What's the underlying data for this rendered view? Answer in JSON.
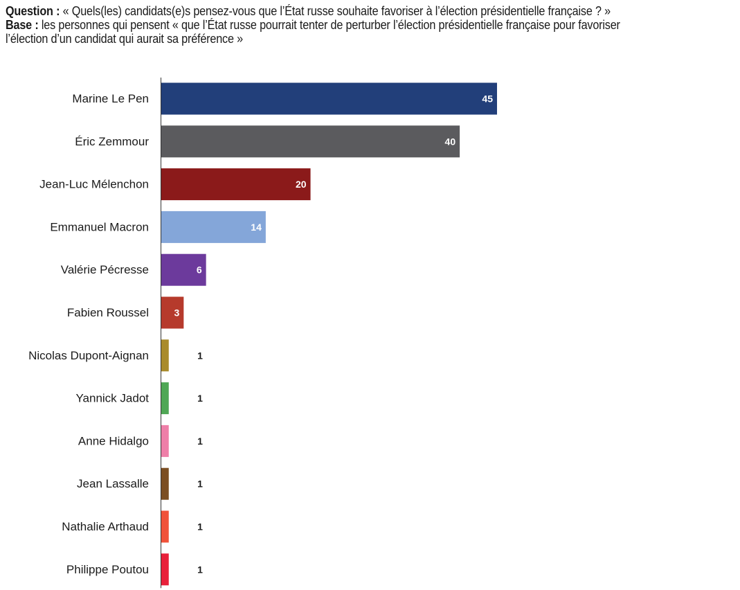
{
  "question": {
    "label": "Question :",
    "text": "« Quels(les) candidats(e)s pensez-vous que l’État russe souhaite favoriser à l’élection présidentielle française ? »"
  },
  "base": {
    "label": "Base :",
    "text_line1": "les personnes qui pensent « que l’État russe pourrait tenter de perturber l’élection présidentielle française pour favoriser",
    "text_line2": "l’élection d’un candidat qui aurait sa préférence »"
  },
  "chart_data": {
    "type": "bar",
    "orientation": "horizontal",
    "categories": [
      "Marine Le Pen",
      "Éric Zemmour",
      "Jean-Luc Mélenchon",
      "Emmanuel Macron",
      "Valérie Pécresse",
      "Fabien Roussel",
      "Nicolas Dupont-Aignan",
      "Yannick Jadot",
      "Anne Hidalgo",
      "Jean Lassalle",
      "Nathalie Arthaud",
      "Philippe Poutou"
    ],
    "values": [
      45,
      40,
      20,
      14,
      6,
      3,
      1,
      1,
      1,
      1,
      1,
      1
    ],
    "colors": [
      "#223F7A",
      "#5B5B5E",
      "#8B1A1A",
      "#84A6D9",
      "#6C3A9C",
      "#B63A2C",
      "#A98B2C",
      "#4FA755",
      "#EE7FA8",
      "#7B4E22",
      "#F0523A",
      "#E8203A"
    ],
    "label_colors": [
      "#ffffff",
      "#ffffff",
      "#ffffff",
      "#ffffff",
      "#ffffff",
      "#ffffff",
      "#1a1a1a",
      "#1a1a1a",
      "#1a1a1a",
      "#1a1a1a",
      "#1a1a1a",
      "#1a1a1a"
    ],
    "label_position": [
      "inside",
      "inside",
      "inside",
      "inside",
      "inside",
      "inside",
      "outside",
      "outside",
      "outside",
      "outside",
      "outside",
      "outside"
    ],
    "xlim": [
      0,
      45
    ],
    "grid": false,
    "legend": "none"
  }
}
